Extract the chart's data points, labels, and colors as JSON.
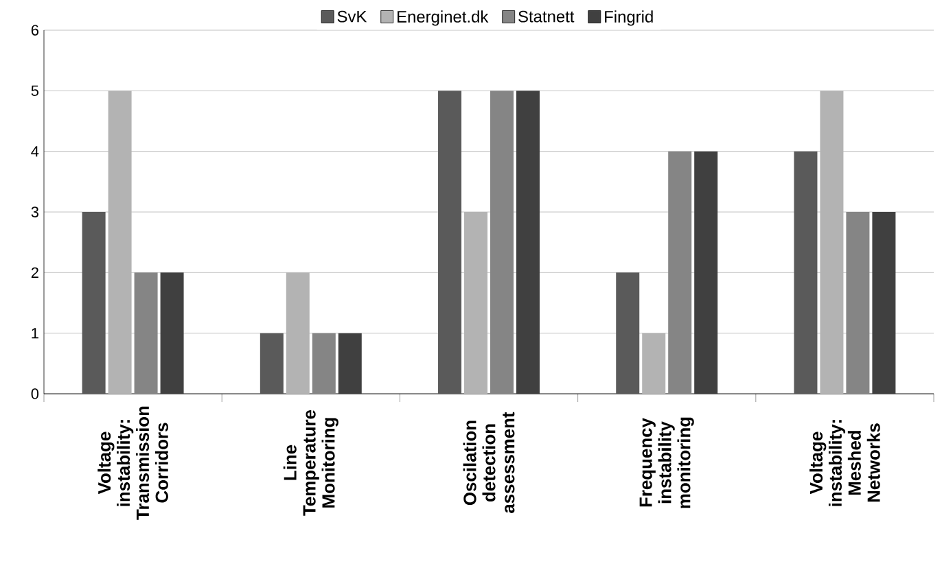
{
  "chart_data": {
    "type": "bar",
    "categories": [
      "Voltage instability: Transmission Corridors",
      "Line Temperature Monitoring",
      "Oscilation detection assessment",
      "Frequency instability monitoring",
      "Voltage instability: Meshed Networks"
    ],
    "series": [
      {
        "name": "SvK",
        "color": "#5a5a5a",
        "values": [
          3,
          1,
          5,
          2,
          4
        ]
      },
      {
        "name": "Energinet.dk",
        "color": "#b3b3b3",
        "values": [
          5,
          2,
          3,
          1,
          5
        ]
      },
      {
        "name": "Statnett",
        "color": "#858585",
        "values": [
          2,
          1,
          5,
          4,
          3
        ]
      },
      {
        "name": "Fingrid",
        "color": "#404040",
        "values": [
          2,
          1,
          5,
          4,
          3
        ]
      }
    ],
    "ylim": [
      0,
      6
    ],
    "yticks": [
      0,
      1,
      2,
      3,
      4,
      5,
      6
    ],
    "grid": "y",
    "legend": "top"
  }
}
